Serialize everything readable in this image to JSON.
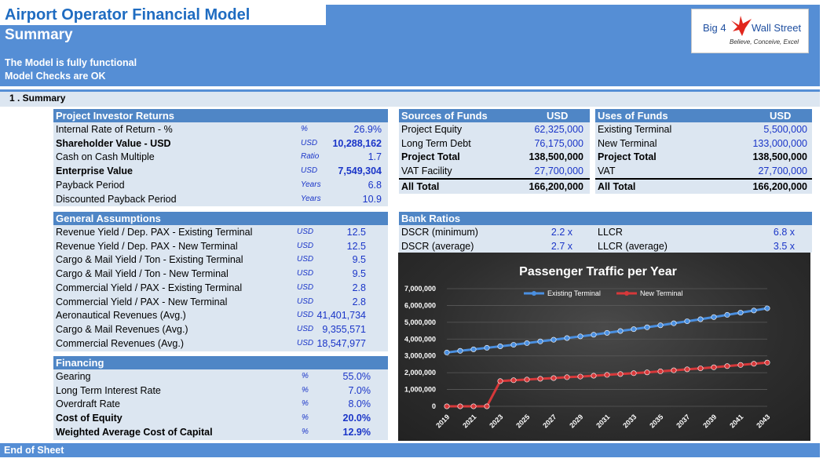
{
  "header": {
    "title": "Airport Operator Financial Model",
    "subtitle": "Summary",
    "status_line1": "The Model is fully functional",
    "status_line2": "Model Checks are OK"
  },
  "logo": {
    "brand_left": "Big 4",
    "brand_right": "Wall Street",
    "tagline": "Believe, Conceive, Excel"
  },
  "section": {
    "title": "1 . Summary"
  },
  "investor_returns": {
    "header": "Project Investor Returns",
    "rows": [
      {
        "label": "Internal Rate of Return - %",
        "unit": "%",
        "value": "26.9%"
      },
      {
        "label": "Shareholder Value - USD",
        "unit": "USD",
        "value": "10,288,162"
      },
      {
        "label": "Cash on Cash Multiple",
        "unit": "Ratio",
        "value": "1.7"
      },
      {
        "label": "Enterprise Value",
        "unit": "USD",
        "value": "7,549,304"
      },
      {
        "label": "Payback Period",
        "unit": "Years",
        "value": "6.8"
      },
      {
        "label": "Discounted Payback Period",
        "unit": "Years",
        "value": "10.9"
      }
    ]
  },
  "general_assumptions": {
    "header": "General Assumptions",
    "rows": [
      {
        "label": "Revenue Yield / Dep. PAX - Existing Terminal",
        "unit": "USD",
        "value": "12.5"
      },
      {
        "label": "Revenue Yield / Dep. PAX - New Terminal",
        "unit": "USD",
        "value": "12.5"
      },
      {
        "label": "Cargo & Mail Yield / Ton - Existing Terminal",
        "unit": "USD",
        "value": "9.5"
      },
      {
        "label": "Cargo & Mail Yield / Ton - New Terminal",
        "unit": "USD",
        "value": "9.5"
      },
      {
        "label": "Commercial Yield / PAX - Existing Terminal",
        "unit": "USD",
        "value": "2.8"
      },
      {
        "label": "Commercial Yield / PAX - New Terminal",
        "unit": "USD",
        "value": "2.8"
      },
      {
        "label": "Aeronautical Revenues (Avg.)",
        "unit": "USD",
        "value": "41,401,734"
      },
      {
        "label": "Cargo & Mail Revenues (Avg.)",
        "unit": "USD",
        "value": "9,355,571"
      },
      {
        "label": "Commercial Revenues (Avg.)",
        "unit": "USD",
        "value": "18,547,977"
      }
    ]
  },
  "financing": {
    "header": "Financing",
    "rows": [
      {
        "label": "Gearing",
        "unit": "%",
        "value": "55.0%"
      },
      {
        "label": "Long Term Interest Rate",
        "unit": "%",
        "value": "7.0%"
      },
      {
        "label": "Overdraft Rate",
        "unit": "%",
        "value": "8.0%"
      },
      {
        "label": "Cost of Equity",
        "unit": "%",
        "value": "20.0%"
      },
      {
        "label": "Weighted Average Cost of Capital",
        "unit": "%",
        "value": "12.9%"
      }
    ]
  },
  "sources": {
    "header": "Sources of Funds",
    "currency": "USD",
    "rows": [
      {
        "label": "Project Equity",
        "value": "62,325,000"
      },
      {
        "label": "Long Term Debt",
        "value": "76,175,000"
      },
      {
        "label": "Project Total",
        "value": "138,500,000"
      },
      {
        "label": "VAT Facility",
        "value": "27,700,000"
      },
      {
        "label": "All Total",
        "value": "166,200,000"
      }
    ]
  },
  "uses": {
    "header": "Uses of Funds",
    "currency": "USD",
    "rows": [
      {
        "label": "Existing Terminal",
        "value": "5,500,000"
      },
      {
        "label": "New Terminal",
        "value": "133,000,000"
      },
      {
        "label": "Project Total",
        "value": "138,500,000"
      },
      {
        "label": "VAT",
        "value": "27,700,000"
      },
      {
        "label": "All Total",
        "value": "166,200,000"
      }
    ]
  },
  "bank_ratios": {
    "header": "Bank Ratios",
    "rows": [
      {
        "label": "DSCR (minimum)",
        "value": "2.2 x",
        "label2": "LLCR",
        "value2": "6.8 x"
      },
      {
        "label": "DSCR (average)",
        "value": "2.7 x",
        "label2": "LLCR (average)",
        "value2": "3.5 x"
      }
    ]
  },
  "footer": {
    "text": "End of Sheet"
  },
  "colors": {
    "band": "#558ed5",
    "header": "#4f86c6",
    "panel": "#dce6f1",
    "existing": "#4a8fe0",
    "new": "#d6383a"
  },
  "chart_data": {
    "type": "line",
    "title": "Passenger Traffic per Year",
    "x": [
      2019,
      2020,
      2021,
      2022,
      2023,
      2024,
      2025,
      2026,
      2027,
      2028,
      2029,
      2030,
      2031,
      2032,
      2033,
      2034,
      2035,
      2036,
      2037,
      2038,
      2039,
      2040,
      2041,
      2042,
      2043
    ],
    "x_tick_labels": [
      "2019",
      "2021",
      "2023",
      "2025",
      "2027",
      "2029",
      "2031",
      "2033",
      "2035",
      "2037",
      "2039",
      "2041",
      "2043"
    ],
    "y_tick_labels": [
      "0",
      "1,000,000",
      "2,000,000",
      "3,000,000",
      "4,000,000",
      "5,000,000",
      "6,000,000",
      "7,000,000"
    ],
    "ylim": [
      0,
      7000000
    ],
    "legend": "top",
    "grid": true,
    "series": [
      {
        "name": "Existing Terminal",
        "values": [
          3200000,
          3300000,
          3390000,
          3480000,
          3570000,
          3660000,
          3760000,
          3860000,
          3960000,
          4060000,
          4160000,
          4260000,
          4370000,
          4480000,
          4590000,
          4700000,
          4820000,
          4940000,
          5060000,
          5180000,
          5310000,
          5440000,
          5570000,
          5700000,
          5830000
        ]
      },
      {
        "name": "New Terminal",
        "values": [
          0,
          0,
          0,
          0,
          1500000,
          1550000,
          1590000,
          1640000,
          1680000,
          1730000,
          1770000,
          1820000,
          1870000,
          1920000,
          1970000,
          2020000,
          2080000,
          2140000,
          2200000,
          2260000,
          2320000,
          2390000,
          2460000,
          2530000,
          2600000
        ]
      }
    ]
  }
}
